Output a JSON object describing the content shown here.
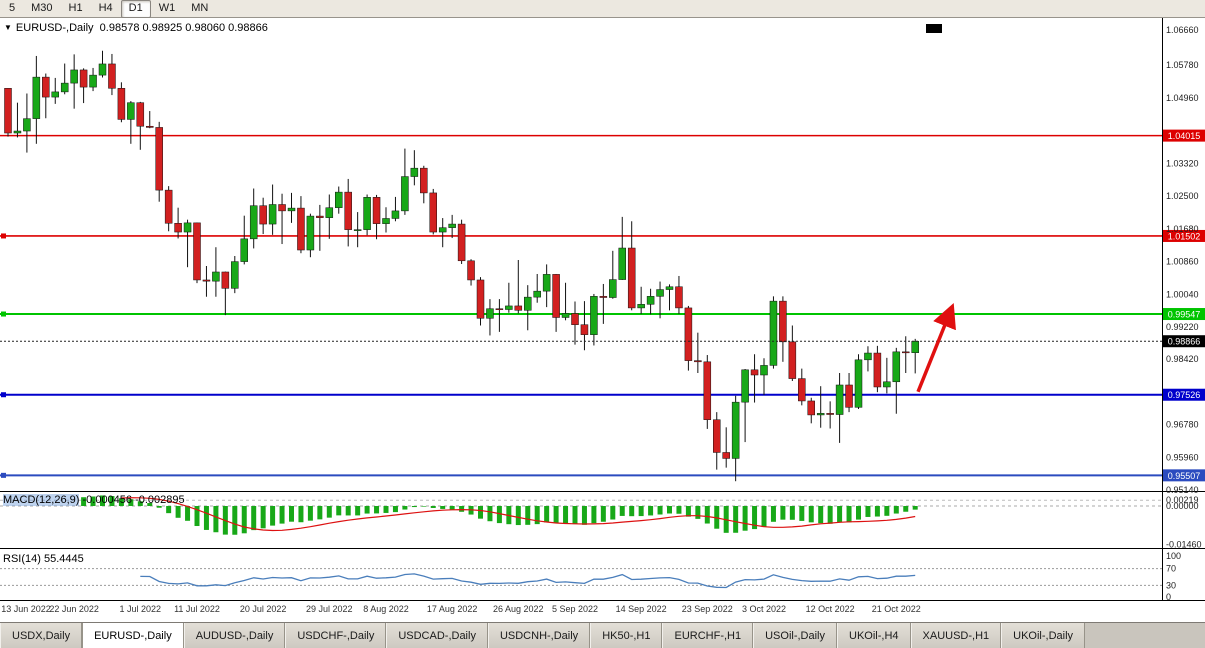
{
  "toolbar": {
    "timeframes": [
      {
        "label": "5",
        "active": false
      },
      {
        "label": "M30",
        "active": false
      },
      {
        "label": "H1",
        "active": false
      },
      {
        "label": "H4",
        "active": false
      },
      {
        "label": "D1",
        "active": true
      },
      {
        "label": "W1",
        "active": false
      },
      {
        "label": "MN",
        "active": false
      }
    ]
  },
  "chart": {
    "title": {
      "symbol": "EURUSD-,Daily",
      "ohlc": "0.98578 0.98925 0.98060 0.98866"
    }
  },
  "chart_data": {
    "type": "candlestick",
    "symbol": "EURUSD-",
    "timeframe": "Daily",
    "last_ohlc": {
      "open": 0.98578,
      "high": 0.98925,
      "low": 0.9806,
      "close": 0.98866
    },
    "ylim": [
      0.9514,
      1.0666
    ],
    "price_axis_ticks": [
      "1.06660",
      "1.05780",
      "1.04960",
      "1.03320",
      "1.02500",
      "1.01680",
      "1.00860",
      "1.00040",
      "0.99220",
      "0.98420",
      "0.96780",
      "0.95960",
      "0.95140"
    ],
    "current_price": {
      "value": 0.98866,
      "label": "0.98866",
      "color": "#000000"
    },
    "hlines": [
      {
        "price": 1.04015,
        "label": "1.04015",
        "color": "#dd0000",
        "width": 1.6,
        "handle": false
      },
      {
        "price": 1.01502,
        "label": "1.01502",
        "color": "#dd0000",
        "width": 1.6,
        "handle": true
      },
      {
        "price": 0.99547,
        "label": "0.99547",
        "color": "#00c400",
        "width": 2,
        "handle": true
      },
      {
        "price": 0.97526,
        "label": "0.97526",
        "color": "#0000cc",
        "width": 2,
        "handle": true
      },
      {
        "price": 0.95507,
        "label": "0.95507",
        "color": "#2b4bbf",
        "width": 2,
        "handle": true
      }
    ],
    "trend_arrow": {
      "color": "#e01010",
      "from": {
        "index": 96.3,
        "price": 0.976
      },
      "to": {
        "index": 99.8,
        "price": 0.9966
      }
    },
    "date_labels": [
      {
        "i": 0,
        "t": "13 Jun 2022"
      },
      {
        "i": 7,
        "t": "22 Jun 2022"
      },
      {
        "i": 14,
        "t": "1 Jul 2022"
      },
      {
        "i": 20,
        "t": "11 Jul 2022"
      },
      {
        "i": 27,
        "t": "20 Jul 2022"
      },
      {
        "i": 34,
        "t": "29 Jul 2022"
      },
      {
        "i": 40,
        "t": "8 Aug 2022"
      },
      {
        "i": 47,
        "t": "17 Aug 2022"
      },
      {
        "i": 54,
        "t": "26 Aug 2022"
      },
      {
        "i": 60,
        "t": "5 Sep 2022"
      },
      {
        "i": 67,
        "t": "14 Sep 2022"
      },
      {
        "i": 74,
        "t": "23 Sep 2022"
      },
      {
        "i": 80,
        "t": "3 Oct 2022"
      },
      {
        "i": 87,
        "t": "12 Oct 2022"
      },
      {
        "i": 94,
        "t": "21 Oct 2022"
      }
    ],
    "candles": [
      [
        1.052,
        1.052,
        1.0399,
        1.0408
      ],
      [
        1.0408,
        1.0484,
        1.0397,
        1.0413
      ],
      [
        1.0413,
        1.0507,
        1.0359,
        1.0444
      ],
      [
        1.0444,
        1.0601,
        1.0381,
        1.0548
      ],
      [
        1.0548,
        1.0557,
        1.0445,
        1.0498
      ],
      [
        1.0498,
        1.0546,
        1.0481,
        1.0511
      ],
      [
        1.0511,
        1.0582,
        1.0505,
        1.0533
      ],
      [
        1.0533,
        1.0605,
        1.0469,
        1.0566
      ],
      [
        1.0566,
        1.057,
        1.0483,
        1.0523
      ],
      [
        1.0523,
        1.0571,
        1.0513,
        1.0553
      ],
      [
        1.0553,
        1.0614,
        1.0547,
        1.0581
      ],
      [
        1.0581,
        1.0606,
        1.0503,
        1.052
      ],
      [
        1.052,
        1.0535,
        1.0435,
        1.0442
      ],
      [
        1.0442,
        1.0488,
        1.0381,
        1.0484
      ],
      [
        1.0484,
        1.0486,
        1.0366,
        1.0425
      ],
      [
        1.0425,
        1.0463,
        1.042,
        1.0422
      ],
      [
        1.0422,
        1.0436,
        1.0236,
        1.0265
      ],
      [
        1.0265,
        1.0275,
        1.0162,
        1.0182
      ],
      [
        1.0182,
        1.0221,
        1.0144,
        1.016
      ],
      [
        1.016,
        1.0191,
        1.0072,
        1.0183
      ],
      [
        1.0183,
        1.0184,
        1.0032,
        1.004
      ],
      [
        1.004,
        1.0075,
        0.9998,
        1.0037
      ],
      [
        1.0037,
        1.0122,
        0.9998,
        1.006
      ],
      [
        1.006,
        1.0061,
        0.9952,
        1.0019
      ],
      [
        1.0019,
        1.01,
        1.0007,
        1.0086
      ],
      [
        1.0086,
        1.0201,
        1.0079,
        1.0143
      ],
      [
        1.0143,
        1.0269,
        1.0119,
        1.0226
      ],
      [
        1.0226,
        1.0246,
        1.0155,
        1.018
      ],
      [
        1.018,
        1.0279,
        1.0153,
        1.0229
      ],
      [
        1.0229,
        1.0256,
        1.013,
        1.0213
      ],
      [
        1.0213,
        1.0258,
        1.0183,
        1.022
      ],
      [
        1.022,
        1.025,
        1.0107,
        1.0115
      ],
      [
        1.0115,
        1.0206,
        1.0097,
        1.02
      ],
      [
        1.02,
        1.0228,
        1.0113,
        1.0196
      ],
      [
        1.0196,
        1.0254,
        1.0143,
        1.0221
      ],
      [
        1.0221,
        1.0274,
        1.0206,
        1.026
      ],
      [
        1.026,
        1.0293,
        1.0124,
        1.0166
      ],
      [
        1.0166,
        1.021,
        1.0122,
        1.0166
      ],
      [
        1.0166,
        1.0254,
        1.0152,
        1.0247
      ],
      [
        1.0247,
        1.0253,
        1.0142,
        1.0181
      ],
      [
        1.0181,
        1.0222,
        1.0159,
        1.0194
      ],
      [
        1.0194,
        1.0248,
        1.0187,
        1.0213
      ],
      [
        1.0213,
        1.0369,
        1.0203,
        1.0299
      ],
      [
        1.0299,
        1.0365,
        1.0277,
        1.032
      ],
      [
        1.032,
        1.0326,
        1.0232,
        1.0258
      ],
      [
        1.0258,
        1.0268,
        1.0154,
        1.016
      ],
      [
        1.016,
        1.0195,
        1.0122,
        1.0171
      ],
      [
        1.0171,
        1.0203,
        1.0145,
        1.018
      ],
      [
        1.018,
        1.0191,
        1.008,
        1.0088
      ],
      [
        1.0088,
        1.0092,
        1.0026,
        1.004
      ],
      [
        1.004,
        1.0047,
        0.9926,
        0.9944
      ],
      [
        0.9944,
        0.9992,
        0.9901,
        0.9968
      ],
      [
        0.9968,
        0.9992,
        0.991,
        0.9966
      ],
      [
        0.9966,
        1.0033,
        0.9958,
        0.9975
      ],
      [
        0.9975,
        1.009,
        0.9956,
        0.9964
      ],
      [
        0.9964,
        1.0027,
        0.9914,
        0.9997
      ],
      [
        0.9997,
        1.0055,
        0.9983,
        1.0012
      ],
      [
        1.0012,
        1.0079,
        0.9972,
        1.0054
      ],
      [
        1.0054,
        1.0055,
        0.991,
        0.9946
      ],
      [
        0.9946,
        1.0033,
        0.9939,
        0.9956
      ],
      [
        0.9956,
        0.9986,
        0.9878,
        0.9928
      ],
      [
        0.9928,
        0.9987,
        0.9864,
        0.9903
      ],
      [
        0.9903,
        1.0005,
        0.9876,
        0.9999
      ],
      [
        0.9999,
        1.003,
        0.993,
        0.9996
      ],
      [
        0.9996,
        1.0113,
        0.9993,
        1.0041
      ],
      [
        1.0041,
        1.0198,
        1.004,
        1.012
      ],
      [
        1.012,
        1.0187,
        0.9964,
        0.997
      ],
      [
        0.997,
        1.0023,
        0.9955,
        0.9979
      ],
      [
        0.9979,
        1.0018,
        0.9954,
        0.9999
      ],
      [
        0.9999,
        1.0036,
        0.9944,
        1.0016
      ],
      [
        1.0016,
        1.0029,
        0.9964,
        1.0023
      ],
      [
        1.0023,
        1.005,
        0.9955,
        0.997
      ],
      [
        0.997,
        0.9975,
        0.9813,
        0.9838
      ],
      [
        0.9838,
        0.9908,
        0.9807,
        0.9835
      ],
      [
        0.9835,
        0.9852,
        0.9667,
        0.969
      ],
      [
        0.969,
        0.9709,
        0.9565,
        0.9608
      ],
      [
        0.9608,
        0.9671,
        0.957,
        0.9593
      ],
      [
        0.9593,
        0.975,
        0.9536,
        0.9734
      ],
      [
        0.9734,
        0.9817,
        0.9634,
        0.9815
      ],
      [
        0.9815,
        0.9854,
        0.9733,
        0.9802
      ],
      [
        0.9802,
        0.9844,
        0.9752,
        0.9826
      ],
      [
        0.9826,
        0.9999,
        0.9818,
        0.9987
      ],
      [
        0.9987,
        0.9999,
        0.9835,
        0.9885
      ],
      [
        0.9885,
        0.9926,
        0.9787,
        0.9793
      ],
      [
        0.9793,
        0.9818,
        0.9726,
        0.9737
      ],
      [
        0.9737,
        0.9745,
        0.9681,
        0.9702
      ],
      [
        0.9702,
        0.9774,
        0.967,
        0.9706
      ],
      [
        0.9706,
        0.9736,
        0.9668,
        0.9703
      ],
      [
        0.9703,
        0.9807,
        0.9632,
        0.9777
      ],
      [
        0.9777,
        0.9807,
        0.9709,
        0.9721
      ],
      [
        0.9721,
        0.9854,
        0.9717,
        0.984
      ],
      [
        0.984,
        0.9874,
        0.9811,
        0.9857
      ],
      [
        0.9857,
        0.9875,
        0.9759,
        0.9772
      ],
      [
        0.9772,
        0.9845,
        0.9756,
        0.9785
      ],
      [
        0.9785,
        0.987,
        0.9705,
        0.986
      ],
      [
        0.986,
        0.9899,
        0.9807,
        0.9858
      ],
      [
        0.98578,
        0.98925,
        0.9806,
        0.98866
      ]
    ],
    "indicators": {
      "macd": {
        "label": "MACD(12,26,9)",
        "values_text": "-0.000456 -0.002895",
        "params": {
          "fast": 12,
          "slow": 26,
          "signal": 9
        },
        "colors": {
          "histogram": "#18a818",
          "signal": "#dd1111"
        },
        "axis_labels": [
          {
            "value": 0.00219,
            "label": "0.00219"
          },
          {
            "value": 0.0,
            "label": "0.00000"
          },
          {
            "value": -0.0146,
            "label": "-0.01460"
          }
        ]
      },
      "rsi": {
        "label": "RSI(14)",
        "value_text": "55.4445",
        "period": 14,
        "color": "#4a7ebb",
        "levels": [
          70,
          30
        ],
        "axis_labels": [
          {
            "value": 100,
            "label": "100"
          },
          {
            "value": 70,
            "label": "70"
          },
          {
            "value": 30,
            "label": "30"
          },
          {
            "value": 0,
            "label": "0"
          }
        ]
      }
    },
    "up_color": "#18a818",
    "down_color": "#d22020"
  },
  "tabs": {
    "items": [
      {
        "label": "USDX,Daily",
        "active": false
      },
      {
        "label": "EURUSD-,Daily",
        "active": true
      },
      {
        "label": "AUDUSD-,Daily",
        "active": false
      },
      {
        "label": "USDCHF-,Daily",
        "active": false
      },
      {
        "label": "USDCAD-,Daily",
        "active": false
      },
      {
        "label": "USDCNH-,Daily",
        "active": false
      },
      {
        "label": "HK50-,H1",
        "active": false
      },
      {
        "label": "EURCHF-,H1",
        "active": false
      },
      {
        "label": "USOil-,Daily",
        "active": false
      },
      {
        "label": "UKOil-,H4",
        "active": false
      },
      {
        "label": "XAUUSD-,H1",
        "active": false
      },
      {
        "label": "UKOil-,Daily",
        "active": false
      }
    ]
  }
}
